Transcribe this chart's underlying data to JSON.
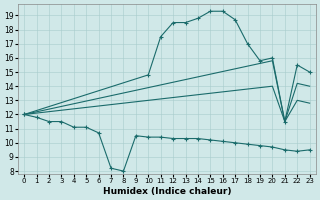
{
  "xlabel": "Humidex (Indice chaleur)",
  "xlim": [
    -0.5,
    23.5
  ],
  "ylim": [
    7.8,
    19.8
  ],
  "xtick_vals": [
    0,
    1,
    2,
    3,
    4,
    5,
    6,
    7,
    8,
    9,
    10,
    11,
    12,
    13,
    14,
    15,
    16,
    17,
    18,
    19,
    20,
    21,
    22,
    23
  ],
  "ytick_vals": [
    8,
    9,
    10,
    11,
    12,
    13,
    14,
    15,
    16,
    17,
    18,
    19
  ],
  "bg_color": "#d0e8e8",
  "grid_color": "#a8cccc",
  "line_color": "#1a6b6b",
  "line1_x": [
    0,
    1,
    2,
    3,
    4,
    5,
    6,
    7,
    8,
    9,
    10,
    11,
    12,
    13,
    14,
    15,
    16,
    17,
    18,
    19,
    20,
    21,
    22,
    23
  ],
  "line1_y": [
    12.0,
    11.8,
    11.5,
    11.5,
    11.1,
    11.1,
    10.7,
    8.2,
    8.0,
    10.5,
    10.4,
    10.4,
    10.3,
    10.3,
    10.3,
    10.2,
    10.1,
    10.0,
    9.9,
    9.8,
    9.7,
    9.5,
    9.4,
    9.5
  ],
  "line2_x": [
    0,
    10,
    11,
    12,
    13,
    14,
    15,
    16,
    17,
    18,
    19,
    20,
    21,
    22,
    23
  ],
  "line2_y": [
    12.0,
    14.8,
    17.5,
    18.5,
    18.5,
    18.8,
    19.3,
    19.3,
    18.7,
    17.0,
    15.8,
    16.0,
    11.5,
    15.5,
    15.0
  ],
  "line3_x": [
    0,
    20,
    21,
    22,
    23
  ],
  "line3_y": [
    12.0,
    15.8,
    11.5,
    14.2,
    14.0
  ],
  "line4_x": [
    0,
    20,
    21,
    22,
    23
  ],
  "line4_y": [
    12.0,
    14.0,
    11.5,
    13.0,
    12.8
  ]
}
